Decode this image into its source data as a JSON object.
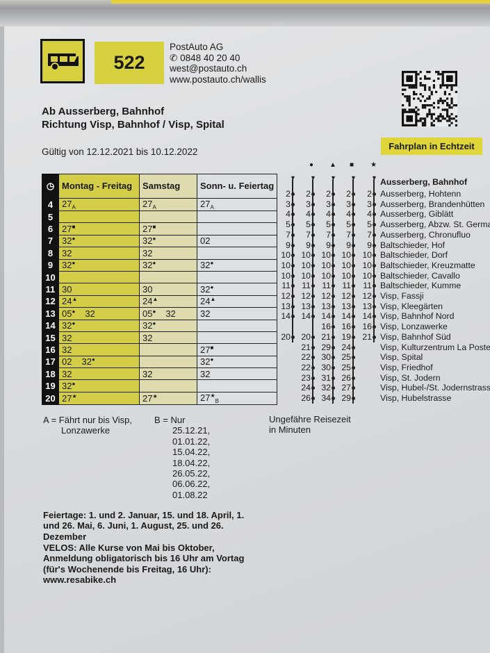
{
  "header": {
    "line": "522",
    "company": "PostAuto AG",
    "phone": "0848 40 20 40",
    "email": "west@postauto.ch",
    "web": "www.postauto.ch/wallis",
    "from": "Ab Ausserberg, Bahnhof",
    "direction": "Richtung Visp, Bahnhof / Visp, Spital",
    "validity": "Gültig von 12.12.2021 bis 10.12.2022",
    "realtime_button": "Fahrplan in Echtzeit"
  },
  "colors": {
    "yellow": "#d3cd48",
    "pale_yellow": "#dedcae",
    "black": "#111111"
  },
  "icons": {
    "bus": "bus-icon",
    "phone": "phone-icon",
    "clock": "clock-icon",
    "qr": "qr-code"
  },
  "timetable": {
    "columns": [
      "Montag - Freitag",
      "Samstag",
      "Sonn- u. Feiertag"
    ],
    "rows": [
      {
        "h": "4",
        "c": [
          [
            {
              "t": "27",
              "sub": "A"
            }
          ],
          [
            {
              "t": "27",
              "sub": "A"
            }
          ],
          [
            {
              "t": "27",
              "sub": "A"
            }
          ]
        ]
      },
      {
        "h": "5",
        "c": [
          [],
          [],
          []
        ]
      },
      {
        "h": "6",
        "c": [
          [
            {
              "t": "27",
              "sup": "■"
            }
          ],
          [
            {
              "t": "27",
              "sup": "■"
            }
          ],
          []
        ]
      },
      {
        "h": "7",
        "c": [
          [
            {
              "t": "32",
              "sup": "●"
            }
          ],
          [
            {
              "t": "32",
              "sup": "●"
            }
          ],
          [
            {
              "t": "02"
            }
          ]
        ]
      },
      {
        "h": "8",
        "c": [
          [
            {
              "t": "32"
            }
          ],
          [
            {
              "t": "32"
            }
          ],
          []
        ]
      },
      {
        "h": "9",
        "c": [
          [
            {
              "t": "32",
              "sup": "●"
            }
          ],
          [
            {
              "t": "32",
              "sup": "●"
            }
          ],
          [
            {
              "t": "32",
              "sup": "●"
            }
          ]
        ]
      },
      {
        "h": "10",
        "c": [
          [],
          [],
          []
        ]
      },
      {
        "h": "11",
        "c": [
          [
            {
              "t": "30"
            }
          ],
          [
            {
              "t": "30"
            }
          ],
          [
            {
              "t": "32",
              "sup": "●"
            }
          ]
        ]
      },
      {
        "h": "12",
        "c": [
          [
            {
              "t": "24",
              "sup": "▲"
            }
          ],
          [
            {
              "t": "24",
              "sup": "▲"
            }
          ],
          [
            {
              "t": "24",
              "sup": "▲"
            }
          ]
        ]
      },
      {
        "h": "13",
        "c": [
          [
            {
              "t": "05",
              "sup": "●"
            },
            {
              "t": "32"
            }
          ],
          [
            {
              "t": "05",
              "sup": "●"
            },
            {
              "t": "32"
            }
          ],
          [
            {
              "t": "32"
            }
          ]
        ]
      },
      {
        "h": "14",
        "c": [
          [
            {
              "t": "32",
              "sup": "●"
            }
          ],
          [
            {
              "t": "32",
              "sup": "●"
            }
          ],
          []
        ]
      },
      {
        "h": "15",
        "c": [
          [
            {
              "t": "32"
            }
          ],
          [
            {
              "t": "32"
            }
          ],
          []
        ]
      },
      {
        "h": "16",
        "c": [
          [
            {
              "t": "32"
            }
          ],
          [],
          [
            {
              "t": "27",
              "sup": "■"
            }
          ]
        ]
      },
      {
        "h": "17",
        "c": [
          [
            {
              "t": "02"
            },
            {
              "t": "32",
              "sup": "●"
            }
          ],
          [],
          [
            {
              "t": "32",
              "sup": "●"
            }
          ]
        ]
      },
      {
        "h": "18",
        "c": [
          [
            {
              "t": "32"
            }
          ],
          [
            {
              "t": "32"
            }
          ],
          [
            {
              "t": "32"
            }
          ]
        ]
      },
      {
        "h": "19",
        "c": [
          [
            {
              "t": "32",
              "sup": "●"
            }
          ],
          [],
          []
        ]
      },
      {
        "h": "20",
        "c": [
          [
            {
              "t": "27",
              "sup": "★"
            }
          ],
          [
            {
              "t": "27",
              "sup": "★"
            }
          ],
          [
            {
              "t": "27",
              "sup": "★",
              "sub": "B"
            }
          ]
        ]
      }
    ]
  },
  "route": {
    "column_symbols": [
      "",
      "●",
      "▲",
      "■",
      "★"
    ],
    "origin": "Ausserberg, Bahnhof",
    "stops": [
      {
        "name": "Ausserberg, Hohtenn",
        "m": [
          "2",
          "2",
          "2",
          "2",
          "2"
        ]
      },
      {
        "name": "Ausserberg, Brandenhütten",
        "m": [
          "3",
          "3",
          "3",
          "3",
          "3"
        ]
      },
      {
        "name": "Ausserberg, Giblätt",
        "m": [
          "4",
          "4",
          "4",
          "4",
          "4"
        ]
      },
      {
        "name": "Ausserberg, Abzw. St. German",
        "m": [
          "5",
          "5",
          "5",
          "5",
          "5"
        ]
      },
      {
        "name": "Ausserberg, Chronufluo",
        "m": [
          "7",
          "7",
          "7",
          "7",
          "7"
        ]
      },
      {
        "name": "Baltschieder, Hof",
        "m": [
          "9",
          "9",
          "9",
          "9",
          "9"
        ]
      },
      {
        "name": "Baltschieder, Dorf",
        "m": [
          "10",
          "10",
          "10",
          "10",
          "10"
        ]
      },
      {
        "name": "Baltschieder, Kreuzmatte",
        "m": [
          "10",
          "10",
          "10",
          "10",
          "10"
        ]
      },
      {
        "name": "Baltschieder, Cavallo",
        "m": [
          "10",
          "10",
          "10",
          "10",
          "10"
        ]
      },
      {
        "name": "Baltschieder, Kumme",
        "m": [
          "11",
          "11",
          "11",
          "11",
          "11"
        ]
      },
      {
        "name": "Visp, Fassji",
        "m": [
          "12",
          "12",
          "12",
          "12",
          "12"
        ]
      },
      {
        "name": "Visp, Kleegärten",
        "m": [
          "13",
          "13",
          "13",
          "13",
          "13"
        ]
      },
      {
        "name": "Visp, Bahnhof Nord",
        "m": [
          "14",
          "14",
          "14",
          "14",
          "14"
        ]
      },
      {
        "name": "Visp, Lonzawerke",
        "m": [
          null,
          null,
          "16",
          "16",
          "16"
        ]
      },
      {
        "name": "Visp, Bahnhof Süd",
        "m": [
          "20",
          "20",
          "21",
          "19",
          "21"
        ]
      },
      {
        "name": "Visp, Kulturzentrum La Poste",
        "m": [
          null,
          "21",
          "29",
          "24",
          null
        ]
      },
      {
        "name": "Visp, Spital",
        "m": [
          null,
          "22",
          "30",
          "25",
          null
        ]
      },
      {
        "name": "Visp, Friedhof",
        "m": [
          null,
          "22",
          "30",
          "25",
          null
        ]
      },
      {
        "name": "Visp, St. Jodern",
        "m": [
          null,
          "23",
          "31",
          "26",
          null
        ]
      },
      {
        "name": "Visp, Hubel-/St. Jodernstrasse",
        "m": [
          null,
          "24",
          "32",
          "27",
          null
        ]
      },
      {
        "name": "Visp, Hubelstrasse",
        "m": [
          null,
          "26",
          "34",
          "29",
          null
        ]
      }
    ],
    "caption_1": "Ungefähre Reisezeit",
    "caption_2": "in Minuten"
  },
  "notes": {
    "a_1": "A = Fährt nur bis Visp,",
    "a_2": "Lonzawerke",
    "b": "B = Nur",
    "b_dates": [
      "25.12.21,",
      "01.01.22,",
      "15.04.22,",
      "18.04.22,",
      "26.05.22,",
      "06.06.22,",
      "01.08.22"
    ],
    "holidays": [
      "Feiertage: 1. und 2. Januar, 15. und 18. April, 1.",
      "und 26. Mai, 6. Juni, 1. August, 25. und 26.",
      "Dezember"
    ],
    "velos": [
      "VELOS: Alle Kurse von Mai bis Oktober,",
      "Anmeldung obligatorisch bis 16 Uhr am Vortag",
      "(für's Wochenende bis Freitag, 16 Uhr):",
      "www.resabike.ch"
    ]
  }
}
